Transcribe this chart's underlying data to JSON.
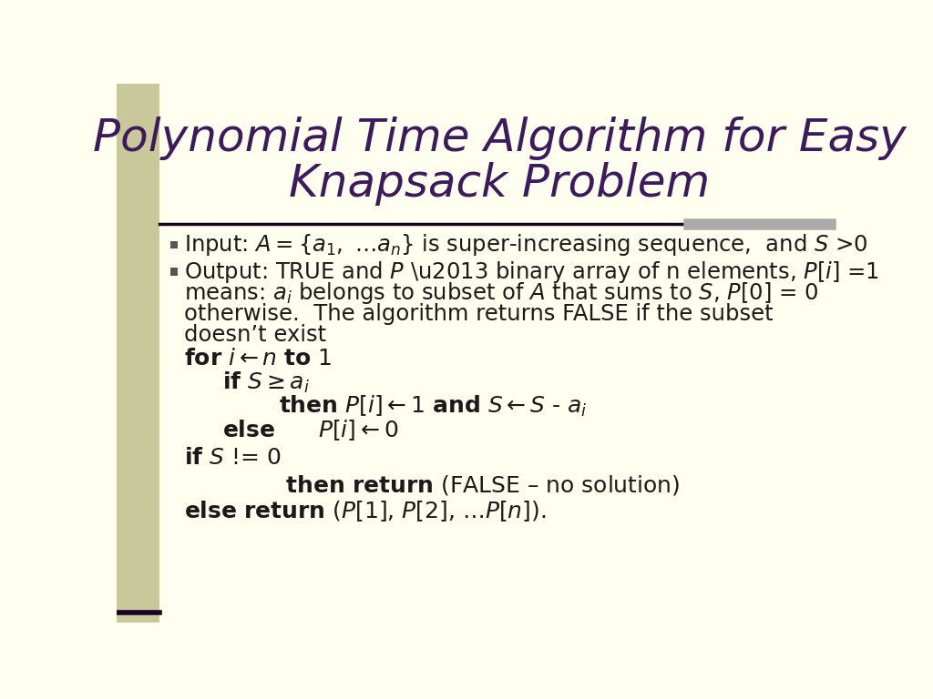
{
  "title_line1": "Polynomial Time Algorithm for Easy",
  "title_line2": "Knapsack Problem",
  "slide_bg": "#fffff0",
  "left_bar_color": "#c8c89a",
  "left_bar_dark": "#1a0020",
  "title_color": "#3d1a5c",
  "body_color": "#1a1a1a",
  "separator_gray_color": "#aaaaaa",
  "bullet_color": "#555555"
}
